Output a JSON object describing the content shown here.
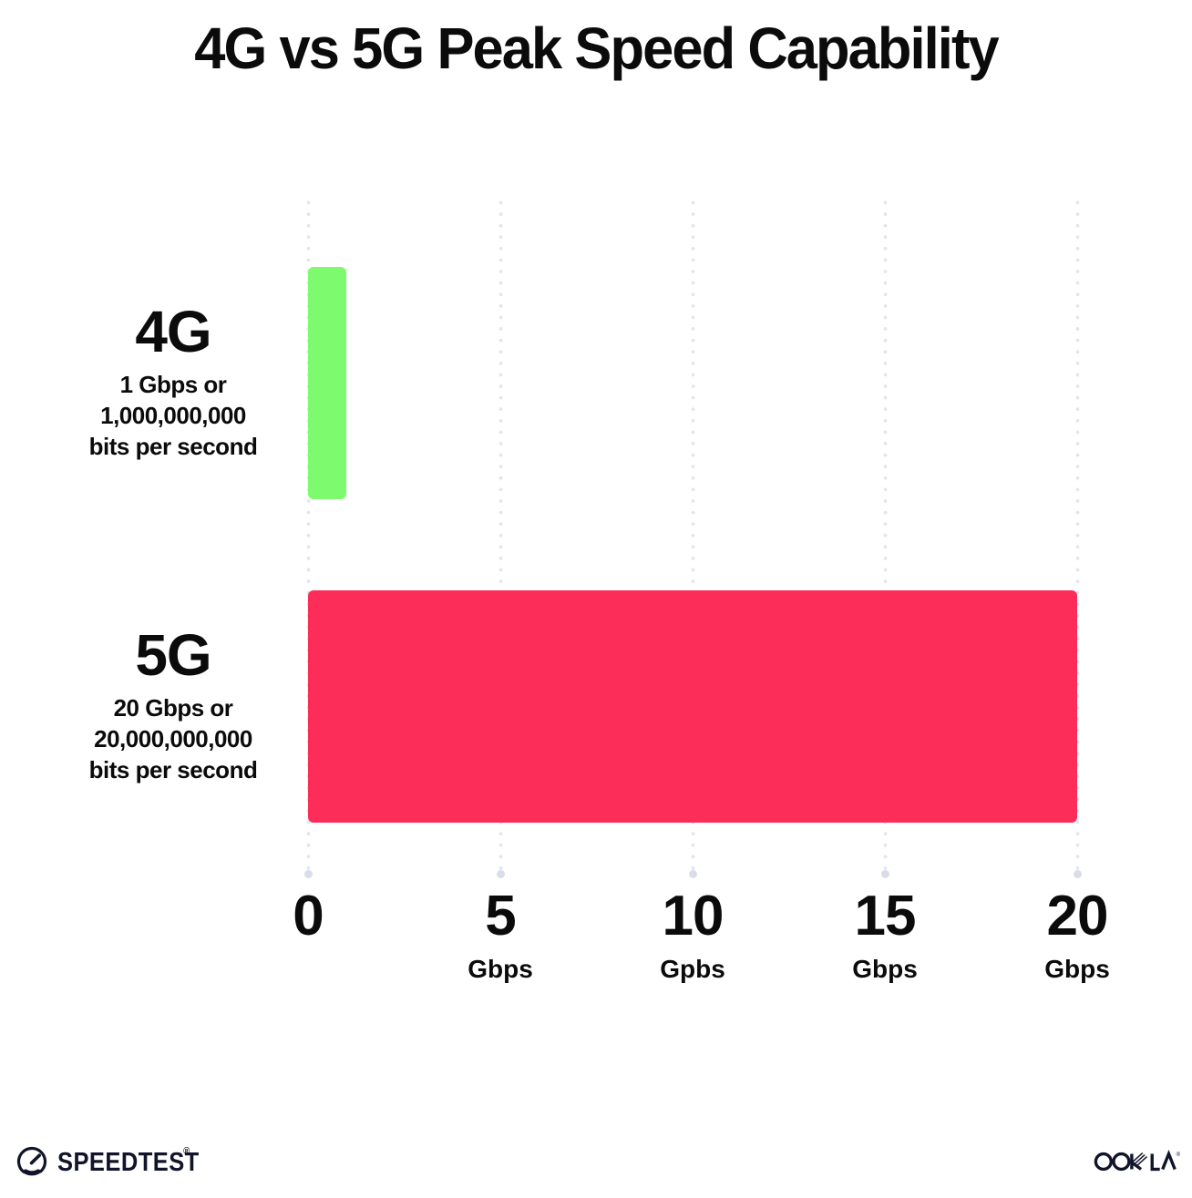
{
  "title": "4G vs 5G Peak Speed Capability",
  "chart_data": {
    "type": "bar",
    "orientation": "horizontal",
    "title": "4G vs 5G Peak Speed Capability",
    "categories": [
      "4G",
      "5G"
    ],
    "values": [
      1,
      20
    ],
    "value_unit": "Gbps",
    "xlim": [
      0,
      20
    ],
    "grid": "vertical dotted gridlines at each tick",
    "legend": "none",
    "bars": [
      {
        "label": "4G",
        "value": 1,
        "color": "#7dfa6e",
        "sublabel_lines": [
          "1 Gbps or",
          "1,000,000,000",
          "bits per second"
        ]
      },
      {
        "label": "5G",
        "value": 20,
        "color": "#fc2d58",
        "sublabel_lines": [
          "20 Gbps or",
          "20,000,000,000",
          "bits per second"
        ]
      }
    ],
    "x_ticks": [
      {
        "value": 0,
        "label": "0",
        "unit": ""
      },
      {
        "value": 5,
        "label": "5",
        "unit": "Gbps"
      },
      {
        "value": 10,
        "label": "10",
        "unit": "Gpbs"
      },
      {
        "value": 15,
        "label": "15",
        "unit": "Gbps"
      },
      {
        "value": 20,
        "label": "20",
        "unit": "Gbps"
      }
    ]
  },
  "footer": {
    "speedtest_label": "SPEEDTEST",
    "speedtest_mark": "®",
    "ookla_label": "OOKLA",
    "ookla_mark": "®"
  },
  "colors": {
    "background": "#ffffff",
    "text": "#0b0b0b",
    "bar_4g": "#7dfa6e",
    "bar_5g": "#fc2d58",
    "gridline_dot": "#e3e5ef",
    "gridline_end_dot": "#d9dcea",
    "logo_ink": "#12152a"
  }
}
